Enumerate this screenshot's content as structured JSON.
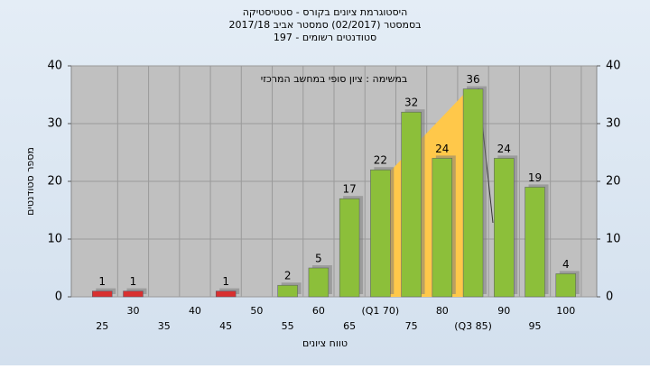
{
  "chart_data": {
    "type": "bar",
    "title": "היסטוגרמת ציונים בקורס - סטטיסטיקה",
    "subtitle": "בסמסטר  (02/2017)  סמסטר אביב 2017/18",
    "subtitle2": "סטודנטים רשומים - 197",
    "annotation": "במשימה : ציון סופי במחשב המרכזי",
    "x_label": "טווח ציונים",
    "y_label": "מספר סטודנטים",
    "categories": [
      "25",
      "30",
      "35",
      "40",
      "45",
      "50",
      "55",
      "60",
      "65",
      "(Q1 70)",
      "75",
      "80",
      "(Q3 85)",
      "90",
      "95",
      "100"
    ],
    "values": [
      1,
      1,
      0,
      0,
      1,
      0,
      2,
      5,
      17,
      22,
      32,
      24,
      36,
      24,
      19,
      4
    ],
    "colors": [
      "#d83030",
      "#d83030",
      "#d83030",
      "#d83030",
      "#d83030",
      "#8cbf3a",
      "#8cbf3a",
      "#8cbf3a",
      "#8cbf3a",
      "#8cbf3a",
      "#8cbf3a",
      "#8cbf3a",
      "#8cbf3a",
      "#8cbf3a",
      "#8cbf3a",
      "#8cbf3a"
    ],
    "ylim": [
      0,
      40
    ],
    "yticks": [
      0,
      10,
      20,
      30,
      40
    ],
    "grid": true
  }
}
